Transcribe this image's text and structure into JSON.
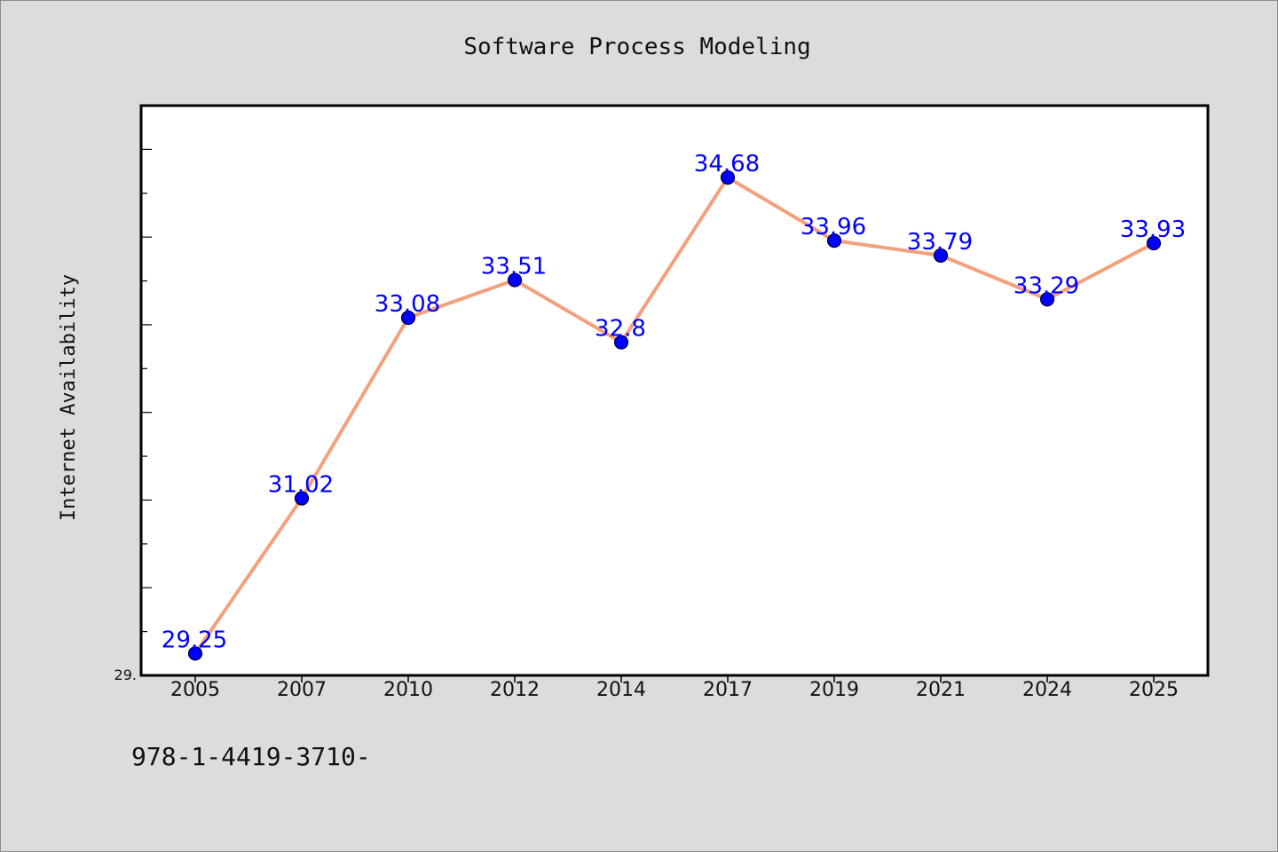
{
  "chart_data": {
    "type": "line",
    "title": "Software Process Modeling",
    "ylabel": "Internet Availability",
    "xlabel": "",
    "categories": [
      "2005",
      "2007",
      "2010",
      "2012",
      "2014",
      "2017",
      "2019",
      "2021",
      "2024",
      "2025"
    ],
    "series": [
      {
        "values": [
          29.25,
          31.02,
          33.08,
          33.51,
          32.8,
          34.68,
          33.96,
          33.79,
          33.29,
          33.93
        ]
      }
    ],
    "data_labels": [
      "29.25",
      "31.02",
      "33.08",
      "33.51",
      "32.8",
      "34.68",
      "33.96",
      "33.79",
      "33.29",
      "33.93"
    ],
    "ylim": [
      29.0,
      35.5
    ],
    "y_tick_label": "29.",
    "grid": false,
    "line_color": "#f4a07c",
    "marker_color": "#0000ff",
    "label_color": "#0000ff"
  },
  "footer_note": "978-1-4419-3710-"
}
